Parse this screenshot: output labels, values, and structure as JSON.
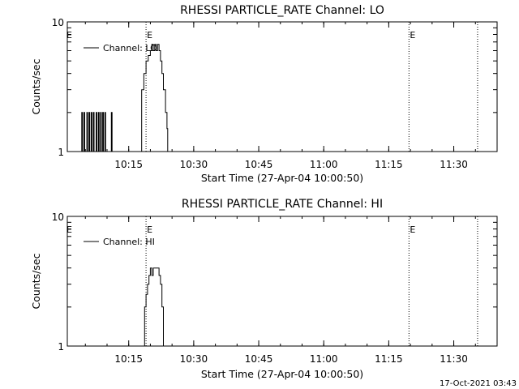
{
  "footer": {
    "timestamp": "17-Oct-2021 03:43"
  },
  "chart_data": [
    {
      "type": "line",
      "title": "RHESSI PARTICLE_RATE Channel: LO",
      "xlabel": "Start Time (27-Apr-04 10:00:50)",
      "ylabel": "Counts/sec",
      "y_scale": "log",
      "ylim": [
        1,
        10
      ],
      "y_tick_labels": [
        "1",
        "10"
      ],
      "x_tick_labels": [
        "10:15",
        "10:30",
        "10:45",
        "11:00",
        "11:15",
        "11:30"
      ],
      "x_range": [
        "10:00:50",
        "11:40:00"
      ],
      "legend": {
        "placement": "top-left",
        "entries": [
          "Channel: LO"
        ]
      },
      "event_markers": [
        {
          "time": "10:19:00",
          "label": "E"
        },
        {
          "time": "11:19:40",
          "label": "E"
        },
        {
          "time": "11:35:30",
          "label": ""
        }
      ],
      "series": [
        {
          "name": "Channel: LO",
          "points": [
            [
              "10:04:00",
              1
            ],
            [
              "10:04:10",
              2
            ],
            [
              "10:04:20",
              1
            ],
            [
              "10:04:40",
              2
            ],
            [
              "10:04:50",
              1
            ],
            [
              "10:05:20",
              2
            ],
            [
              "10:05:30",
              1
            ],
            [
              "10:05:50",
              2
            ],
            [
              "10:06:00",
              1
            ],
            [
              "10:06:20",
              2
            ],
            [
              "10:06:30",
              1
            ],
            [
              "10:06:50",
              2
            ],
            [
              "10:07:00",
              1
            ],
            [
              "10:07:30",
              2
            ],
            [
              "10:07:40",
              1
            ],
            [
              "10:08:00",
              2
            ],
            [
              "10:08:10",
              1
            ],
            [
              "10:08:30",
              2
            ],
            [
              "10:08:40",
              1
            ],
            [
              "10:09:00",
              2
            ],
            [
              "10:09:10",
              1
            ],
            [
              "10:09:30",
              2
            ],
            [
              "10:09:40",
              1
            ],
            [
              "10:10:50",
              1
            ],
            [
              "10:11:00",
              2
            ],
            [
              "10:11:10",
              1
            ],
            [
              "10:17:40",
              1
            ],
            [
              "10:18:00",
              3
            ],
            [
              "10:18:30",
              4
            ],
            [
              "10:19:00",
              5
            ],
            [
              "10:19:30",
              5.5
            ],
            [
              "10:20:00",
              6
            ],
            [
              "10:20:20",
              6.7
            ],
            [
              "10:20:40",
              6
            ],
            [
              "10:21:00",
              6.7
            ],
            [
              "10:21:20",
              6
            ],
            [
              "10:21:40",
              6.7
            ],
            [
              "10:22:00",
              6
            ],
            [
              "10:22:20",
              5
            ],
            [
              "10:22:40",
              4
            ],
            [
              "10:23:00",
              3
            ],
            [
              "10:23:30",
              2
            ],
            [
              "10:23:50",
              1.5
            ],
            [
              "10:24:00",
              1
            ]
          ]
        }
      ]
    },
    {
      "type": "line",
      "title": "RHESSI PARTICLE_RATE Channel: HI",
      "xlabel": "Start Time (27-Apr-04 10:00:50)",
      "ylabel": "Counts/sec",
      "y_scale": "log",
      "ylim": [
        1,
        10
      ],
      "y_tick_labels": [
        "1",
        "10"
      ],
      "x_tick_labels": [
        "10:15",
        "10:30",
        "10:45",
        "11:00",
        "11:15",
        "11:30"
      ],
      "x_range": [
        "10:00:50",
        "11:40:00"
      ],
      "legend": {
        "placement": "top-left",
        "entries": [
          "Channel: HI"
        ]
      },
      "event_markers": [
        {
          "time": "10:19:00",
          "label": "E"
        },
        {
          "time": "11:19:40",
          "label": "E"
        },
        {
          "time": "11:35:30",
          "label": ""
        }
      ],
      "series": [
        {
          "name": "Channel: HI",
          "points": [
            [
              "10:18:20",
              1
            ],
            [
              "10:18:40",
              2
            ],
            [
              "10:19:00",
              2.5
            ],
            [
              "10:19:20",
              3
            ],
            [
              "10:19:40",
              3.5
            ],
            [
              "10:20:00",
              4
            ],
            [
              "10:20:20",
              3.5
            ],
            [
              "10:20:40",
              4
            ],
            [
              "10:21:00",
              4
            ],
            [
              "10:21:20",
              4
            ],
            [
              "10:21:40",
              4
            ],
            [
              "10:22:00",
              3.5
            ],
            [
              "10:22:20",
              3
            ],
            [
              "10:22:40",
              2
            ],
            [
              "10:23:00",
              1
            ]
          ]
        }
      ]
    }
  ]
}
